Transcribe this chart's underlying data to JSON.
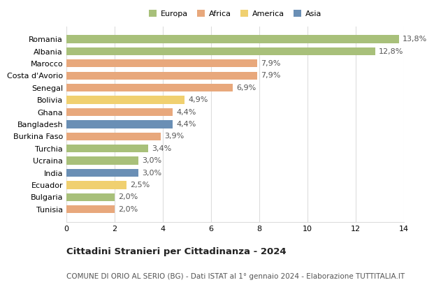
{
  "categories": [
    "Romania",
    "Albania",
    "Marocco",
    "Costa d'Avorio",
    "Senegal",
    "Bolivia",
    "Ghana",
    "Bangladesh",
    "Burkina Faso",
    "Turchia",
    "Ucraina",
    "India",
    "Ecuador",
    "Bulgaria",
    "Tunisia"
  ],
  "values": [
    13.8,
    12.8,
    7.9,
    7.9,
    6.9,
    4.9,
    4.4,
    4.4,
    3.9,
    3.4,
    3.0,
    3.0,
    2.5,
    2.0,
    2.0
  ],
  "labels": [
    "13,8%",
    "12,8%",
    "7,9%",
    "7,9%",
    "6,9%",
    "4,9%",
    "4,4%",
    "4,4%",
    "3,9%",
    "3,4%",
    "3,0%",
    "3,0%",
    "2,5%",
    "2,0%",
    "2,0%"
  ],
  "continents": [
    "Europa",
    "Europa",
    "Africa",
    "Africa",
    "Africa",
    "America",
    "Africa",
    "Asia",
    "Africa",
    "Europa",
    "Europa",
    "Asia",
    "America",
    "Europa",
    "Africa"
  ],
  "colors": {
    "Europa": "#a8c07a",
    "Africa": "#e8a87c",
    "America": "#f0d070",
    "Asia": "#6a8fb5"
  },
  "legend_order": [
    "Europa",
    "Africa",
    "America",
    "Asia"
  ],
  "legend_colors": {
    "Europa": "#a8c07a",
    "Africa": "#e8a87c",
    "America": "#f0d070",
    "Asia": "#6a8fb5"
  },
  "xlim": [
    0,
    14
  ],
  "xticks": [
    0,
    2,
    4,
    6,
    8,
    10,
    12,
    14
  ],
  "title": "Cittadini Stranieri per Cittadinanza - 2024",
  "subtitle": "COMUNE DI ORIO AL SERIO (BG) - Dati ISTAT al 1° gennaio 2024 - Elaborazione TUTTITALIA.IT",
  "bg_color": "#ffffff",
  "grid_color": "#dddddd",
  "bar_height": 0.65,
  "label_fontsize": 8.0,
  "tick_fontsize": 8.0,
  "title_fontsize": 9.5,
  "subtitle_fontsize": 7.5
}
